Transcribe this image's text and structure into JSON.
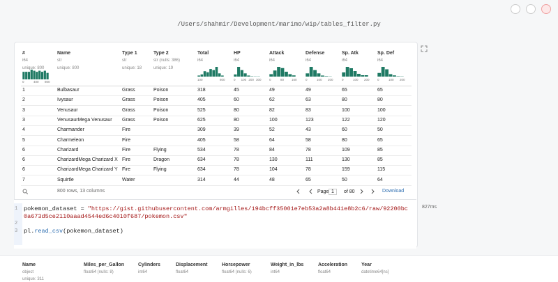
{
  "header": {
    "file_path": "/Users/shahmir/Development/marimo/wip/tables_filter.py"
  },
  "table": {
    "columns": [
      {
        "name": "#",
        "dtype": "i64",
        "summary": "unique: 800",
        "hist": [
          7,
          7,
          7,
          9,
          8,
          7,
          8,
          7,
          8,
          6
        ],
        "hist_ticks": [
          "0",
          "400",
          "800"
        ]
      },
      {
        "name": "Name",
        "dtype": "str",
        "summary": "unique: 800"
      },
      {
        "name": "Type 1",
        "dtype": "str",
        "summary": "unique: 18"
      },
      {
        "name": "Type 2",
        "dtype": "str (nulls: 386)",
        "summary": "unique: 19"
      },
      {
        "name": "Total",
        "dtype": "i64",
        "hist": [
          1,
          2,
          5,
          4,
          7,
          6,
          9,
          3,
          1
        ],
        "hist_ticks": [
          "100",
          "800"
        ]
      },
      {
        "name": "HP",
        "dtype": "i64",
        "hist": [
          2,
          9,
          6,
          3,
          1,
          0.3,
          0.2,
          0.2
        ],
        "hist_ticks": [
          "0",
          "100",
          "200",
          "300"
        ]
      },
      {
        "name": "Attack",
        "dtype": "i64",
        "hist": [
          2,
          5,
          8,
          7,
          4,
          2,
          1
        ],
        "hist_ticks": [
          "0",
          "80",
          "160"
        ]
      },
      {
        "name": "Defense",
        "dtype": "i64",
        "hist": [
          3,
          9,
          6,
          3,
          1,
          0.4,
          0.2
        ],
        "hist_ticks": [
          "0",
          "100",
          "200"
        ]
      },
      {
        "name": "Sp. Atk",
        "dtype": "i64",
        "hist": [
          3,
          7,
          6,
          4,
          2,
          1,
          1
        ],
        "hist_ticks": [
          "0",
          "100",
          "200"
        ]
      },
      {
        "name": "Sp. Def",
        "dtype": "i64",
        "hist": [
          3,
          8,
          6,
          2,
          1,
          0.3,
          0.2
        ],
        "hist_ticks": [
          "0",
          "100",
          "200"
        ]
      }
    ],
    "rows": [
      [
        1,
        "Bulbasaur",
        "Grass",
        "Poison",
        318,
        45,
        49,
        49,
        65,
        65
      ],
      [
        2,
        "Ivysaur",
        "Grass",
        "Poison",
        405,
        60,
        62,
        63,
        80,
        80
      ],
      [
        3,
        "Venusaur",
        "Grass",
        "Poison",
        525,
        80,
        82,
        83,
        100,
        100
      ],
      [
        3,
        "VenusaurMega Venusaur",
        "Grass",
        "Poison",
        625,
        80,
        100,
        123,
        122,
        120
      ],
      [
        4,
        "Charmander",
        "Fire",
        null,
        309,
        39,
        52,
        43,
        60,
        50
      ],
      [
        5,
        "Charmeleon",
        "Fire",
        null,
        405,
        58,
        64,
        58,
        80,
        65
      ],
      [
        6,
        "Charizard",
        "Fire",
        "Flying",
        534,
        78,
        84,
        78,
        109,
        85
      ],
      [
        6,
        "CharizardMega Charizard X",
        "Fire",
        "Dragon",
        634,
        78,
        130,
        111,
        130,
        85
      ],
      [
        6,
        "CharizardMega Charizard Y",
        "Fire",
        "Flying",
        634,
        78,
        104,
        78,
        159,
        115
      ],
      [
        7,
        "Squirtle",
        "Water",
        null,
        314,
        44,
        48,
        65,
        50,
        64
      ]
    ],
    "footer": {
      "row_count": "800 rows, 13 columns",
      "page_label": "Page",
      "page": "1",
      "page_of": "of 80",
      "download": "Download"
    }
  },
  "code": {
    "lines": [
      {
        "number": "1",
        "tokens": [
          "pokemon_dataset",
          " = ",
          "\"https://gist.githubusercontent.com/armgilles/194bcff35001e7eb53a2a8b441e8b2c6/raw/92200bc0a673d5ce2110aaad4544ed6c4010f687/pokemon.csv\""
        ]
      },
      {
        "number": "2",
        "tokens": []
      },
      {
        "number": "3",
        "tokens": [
          "pl",
          ".",
          "read_csv",
          "(pokemon_dataset)"
        ]
      }
    ],
    "runtime": "827ms"
  },
  "next_table": {
    "columns": [
      {
        "name": "Name",
        "dtype": "object",
        "summary": "unique: 311"
      },
      {
        "name": "Miles_per_Gallon",
        "dtype": "float64 (nulls: 8)"
      },
      {
        "name": "Cylinders",
        "dtype": "int64"
      },
      {
        "name": "Displacement",
        "dtype": "float64"
      },
      {
        "name": "Horsepower",
        "dtype": "float64 (nulls: 6)"
      },
      {
        "name": "Weight_in_lbs",
        "dtype": "int64"
      },
      {
        "name": "Acceleration",
        "dtype": "float64"
      },
      {
        "name": "Year",
        "dtype": "datetime64[ns]"
      }
    ]
  }
}
